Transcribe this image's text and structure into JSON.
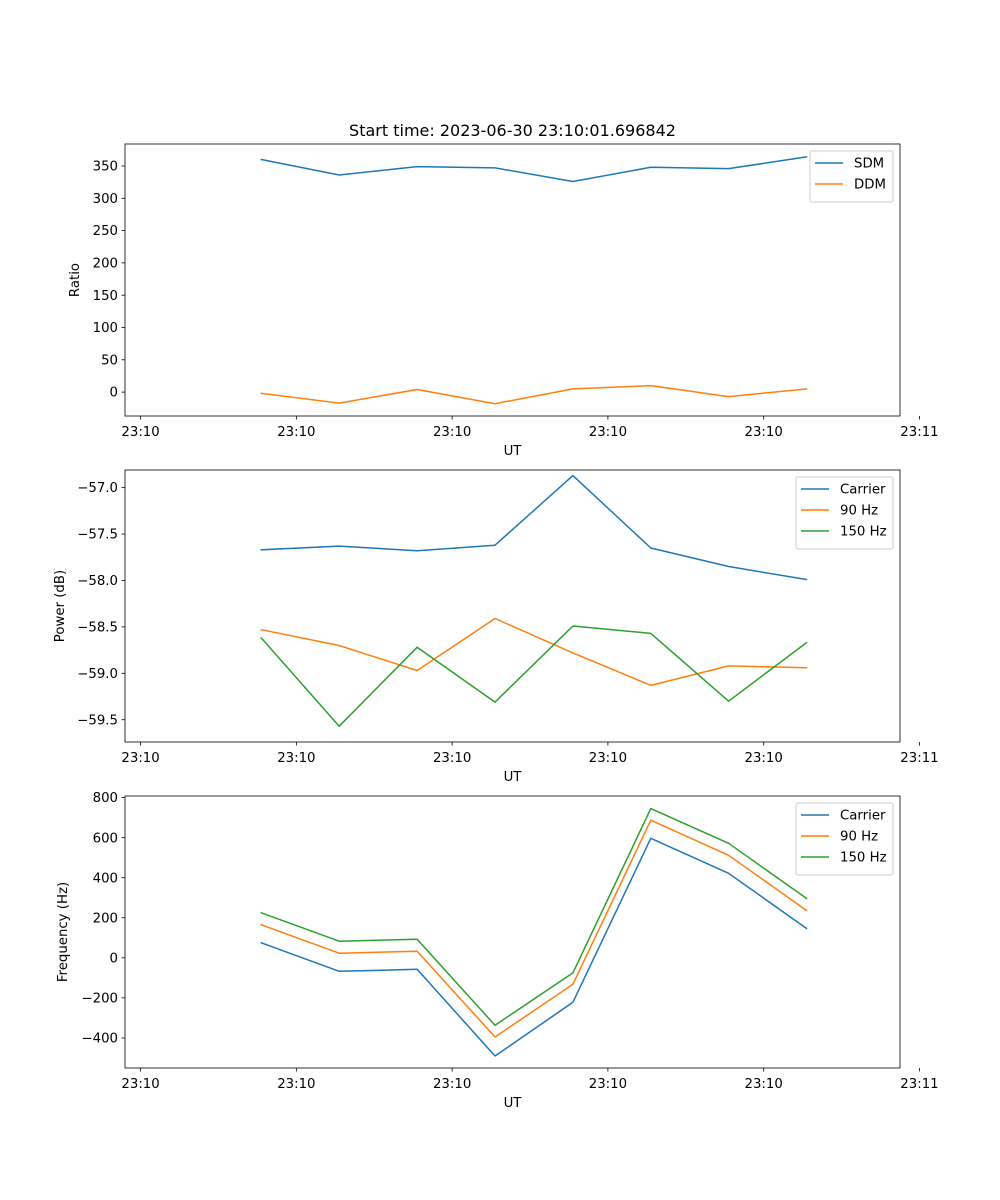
{
  "figure": {
    "title": "Start time: 2023-06-30 23:10:01.696842"
  },
  "chart_data": [
    {
      "type": "line",
      "title": "Start time: 2023-06-30 23:10:01.696842",
      "xlabel": "UT",
      "ylabel": "Ratio",
      "x": [
        1.0,
        2.0,
        3.0,
        4.0,
        5.0,
        6.0,
        7.0,
        8.0
      ],
      "xlim": [
        -0.75,
        9.2
      ],
      "xticks": [
        -0.55,
        1.45,
        3.45,
        5.45,
        7.45,
        9.45
      ],
      "xtick_labels": [
        "23:10",
        "23:10",
        "23:10",
        "23:10",
        "23:10",
        "23:11"
      ],
      "ylim": [
        -37,
        384
      ],
      "yticks": [
        0,
        50,
        100,
        150,
        200,
        250,
        300,
        350
      ],
      "ytick_labels": [
        "0",
        "50",
        "100",
        "150",
        "200",
        "250",
        "300",
        "350"
      ],
      "grid": false,
      "legend_position": "upper right",
      "series": [
        {
          "name": "SDM",
          "color": "#1f77b4",
          "values": [
            360,
            336,
            349,
            347,
            326,
            348,
            346,
            364
          ]
        },
        {
          "name": "DDM",
          "color": "#ff7f0e",
          "values": [
            -2,
            -17,
            4,
            -18,
            5,
            10,
            -7,
            5
          ]
        }
      ]
    },
    {
      "type": "line",
      "xlabel": "UT",
      "ylabel": "Power (dB)",
      "x": [
        1.0,
        2.0,
        3.0,
        4.0,
        5.0,
        6.0,
        7.0,
        8.0
      ],
      "xlim": [
        -0.75,
        9.2
      ],
      "xticks": [
        -0.55,
        1.45,
        3.45,
        5.45,
        7.45,
        9.45
      ],
      "xtick_labels": [
        "23:10",
        "23:10",
        "23:10",
        "23:10",
        "23:10",
        "23:11"
      ],
      "ylim": [
        -59.74,
        -56.81
      ],
      "yticks": [
        -59.5,
        -59.0,
        -58.5,
        -58.0,
        -57.5,
        -57.0
      ],
      "ytick_labels": [
        "−59.5",
        "−59.0",
        "−58.5",
        "−58.0",
        "−57.5",
        "−57.0"
      ],
      "grid": false,
      "legend_position": "upper right",
      "series": [
        {
          "name": "Carrier",
          "color": "#1f77b4",
          "values": [
            -57.67,
            -57.63,
            -57.68,
            -57.62,
            -56.87,
            -57.65,
            -57.85,
            -57.99
          ]
        },
        {
          "name": "90 Hz",
          "color": "#ff7f0e",
          "values": [
            -58.53,
            -58.7,
            -58.97,
            -58.41,
            -58.78,
            -59.13,
            -58.92,
            -58.94
          ]
        },
        {
          "name": "150 Hz",
          "color": "#2ca02c",
          "values": [
            -58.62,
            -59.57,
            -58.72,
            -59.31,
            -58.49,
            -58.57,
            -59.3,
            -58.67
          ]
        }
      ]
    },
    {
      "type": "line",
      "xlabel": "UT",
      "ylabel": "Frequency (Hz)",
      "x": [
        1.0,
        2.0,
        3.0,
        4.0,
        5.0,
        6.0,
        7.0,
        8.0
      ],
      "xlim": [
        -0.75,
        9.2
      ],
      "xticks": [
        -0.55,
        1.45,
        3.45,
        5.45,
        7.45,
        9.45
      ],
      "xtick_labels": [
        "23:10",
        "23:10",
        "23:10",
        "23:10",
        "23:10",
        "23:11"
      ],
      "ylim": [
        -550,
        808
      ],
      "yticks": [
        -400,
        -200,
        0,
        200,
        400,
        600,
        800
      ],
      "ytick_labels": [
        "−400",
        "−200",
        "0",
        "200",
        "400",
        "600",
        "800"
      ],
      "grid": false,
      "legend_position": "upper right",
      "series": [
        {
          "name": "Carrier",
          "color": "#1f77b4",
          "values": [
            75,
            -67,
            -57,
            -490,
            -222,
            597,
            422,
            147
          ]
        },
        {
          "name": "90 Hz",
          "color": "#ff7f0e",
          "values": [
            165,
            23,
            33,
            -395,
            -132,
            687,
            512,
            237
          ]
        },
        {
          "name": "150 Hz",
          "color": "#2ca02c",
          "values": [
            225,
            83,
            93,
            -337,
            -75,
            745,
            572,
            297
          ]
        }
      ]
    }
  ]
}
